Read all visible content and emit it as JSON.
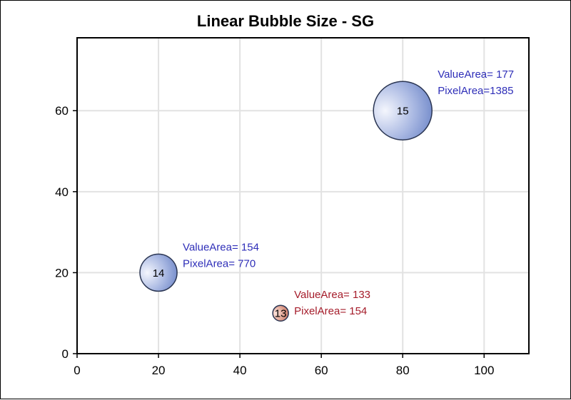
{
  "chart_data": {
    "type": "scatter",
    "title": "Linear Bubble Size - SG",
    "xlabel": "",
    "ylabel": "",
    "xlim": [
      0,
      111
    ],
    "ylim": [
      0,
      78
    ],
    "xticks": [
      0,
      20,
      40,
      60,
      80,
      100
    ],
    "yticks": [
      0,
      20,
      40,
      60
    ],
    "grid": true,
    "legend": "none",
    "points": [
      {
        "x": 50,
        "y": 10,
        "size": 13,
        "label": "13",
        "color": "#c97a66",
        "annotation_color": "#a51c2a",
        "annotation": [
          "ValueArea= 133",
          "PixelArea= 154"
        ]
      },
      {
        "x": 20,
        "y": 20,
        "size": 14,
        "label": "14",
        "color": "#6f88c8",
        "annotation_color": "#2e2eb8",
        "annotation": [
          "ValueArea= 154",
          "PixelArea= 770"
        ]
      },
      {
        "x": 80,
        "y": 60,
        "size": 15,
        "label": "15",
        "color": "#6f88c8",
        "annotation_color": "#2e2eb8",
        "annotation": [
          "ValueArea= 177",
          "PixelArea=1385"
        ]
      }
    ]
  }
}
